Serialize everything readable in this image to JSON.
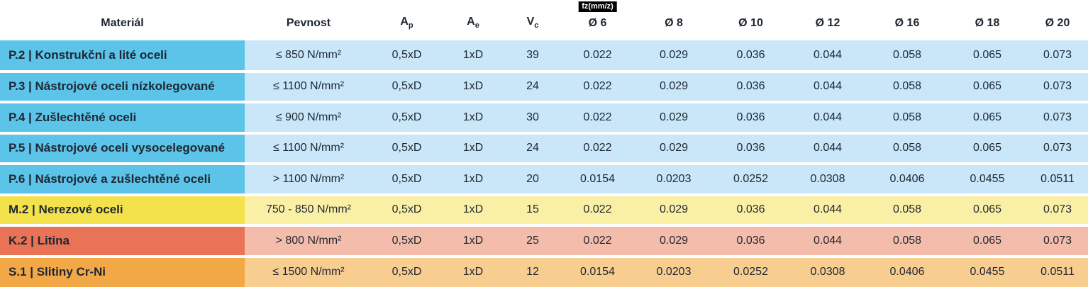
{
  "colors": {
    "text": "#1e2732",
    "blue_dark": "#5cc3e9",
    "blue_light": "#c9e7f8",
    "yellow_dark": "#f3e24b",
    "yellow_light": "#faf0a5",
    "red_dark": "#e87356",
    "red_light": "#f4bcaa",
    "orange_dark": "#f3a847",
    "orange_light": "#f8cd90",
    "badge_bg": "#000000",
    "badge_text": "#ffffff"
  },
  "chart_data": {
    "type": "table",
    "title": "",
    "header": {
      "material": "Materiál",
      "pevnost": "Pevnost",
      "ap": {
        "base": "A",
        "sub": "p"
      },
      "ae": {
        "base": "A",
        "sub": "e"
      },
      "vc": {
        "base": "V",
        "sub": "c"
      },
      "fz_unit_badge": "fz(mm/z)",
      "diameters": [
        "Ø 6",
        "Ø 8",
        "Ø 10",
        "Ø 12",
        "Ø 16",
        "Ø 18",
        "Ø 20"
      ]
    },
    "rows": [
      {
        "material": "P.2 | Konstrukční a lité oceli",
        "pevnost": "≤ 850 N/mm²",
        "ap": "0,5xD",
        "ae": "1xD",
        "vc": "39",
        "fz": [
          "0.022",
          "0.029",
          "0.036",
          "0.044",
          "0.058",
          "0.065",
          "0.073"
        ],
        "theme": "blue"
      },
      {
        "material": "P.3 | Nástrojové oceli nízkolegované",
        "pevnost": "≤ 1100 N/mm²",
        "ap": "0,5xD",
        "ae": "1xD",
        "vc": "24",
        "fz": [
          "0.022",
          "0.029",
          "0.036",
          "0.044",
          "0.058",
          "0.065",
          "0.073"
        ],
        "theme": "blue"
      },
      {
        "material": "P.4 | Zušlechtěné oceli",
        "pevnost": "≤ 900 N/mm²",
        "ap": "0,5xD",
        "ae": "1xD",
        "vc": "30",
        "fz": [
          "0.022",
          "0.029",
          "0.036",
          "0.044",
          "0.058",
          "0.065",
          "0.073"
        ],
        "theme": "blue"
      },
      {
        "material": "P.5 | Nástrojové oceli vysocelegované",
        "pevnost": "≤ 1100 N/mm²",
        "ap": "0,5xD",
        "ae": "1xD",
        "vc": "24",
        "fz": [
          "0.022",
          "0.029",
          "0.036",
          "0.044",
          "0.058",
          "0.065",
          "0.073"
        ],
        "theme": "blue"
      },
      {
        "material": "P.6 | Nástrojové a zušlechtěné oceli",
        "pevnost": "> 1100 N/mm²",
        "ap": "0,5xD",
        "ae": "1xD",
        "vc": "20",
        "fz": [
          "0.0154",
          "0.0203",
          "0.0252",
          "0.0308",
          "0.0406",
          "0.0455",
          "0.0511"
        ],
        "theme": "blue"
      },
      {
        "material": "M.2 | Nerezové oceli",
        "pevnost": "750 - 850 N/mm²",
        "ap": "0,5xD",
        "ae": "1xD",
        "vc": "15",
        "fz": [
          "0.022",
          "0.029",
          "0.036",
          "0.044",
          "0.058",
          "0.065",
          "0.073"
        ],
        "theme": "yellow"
      },
      {
        "material": "K.2 | Litina",
        "pevnost": "> 800 N/mm²",
        "ap": "0,5xD",
        "ae": "1xD",
        "vc": "25",
        "fz": [
          "0.022",
          "0.029",
          "0.036",
          "0.044",
          "0.058",
          "0.065",
          "0.073"
        ],
        "theme": "red"
      },
      {
        "material": "S.1 | Slitiny Cr-Ni",
        "pevnost": "≤ 1500 N/mm²",
        "ap": "0,5xD",
        "ae": "1xD",
        "vc": "12",
        "fz": [
          "0.0154",
          "0.0203",
          "0.0252",
          "0.0308",
          "0.0406",
          "0.0455",
          "0.0511"
        ],
        "theme": "orange"
      }
    ]
  }
}
